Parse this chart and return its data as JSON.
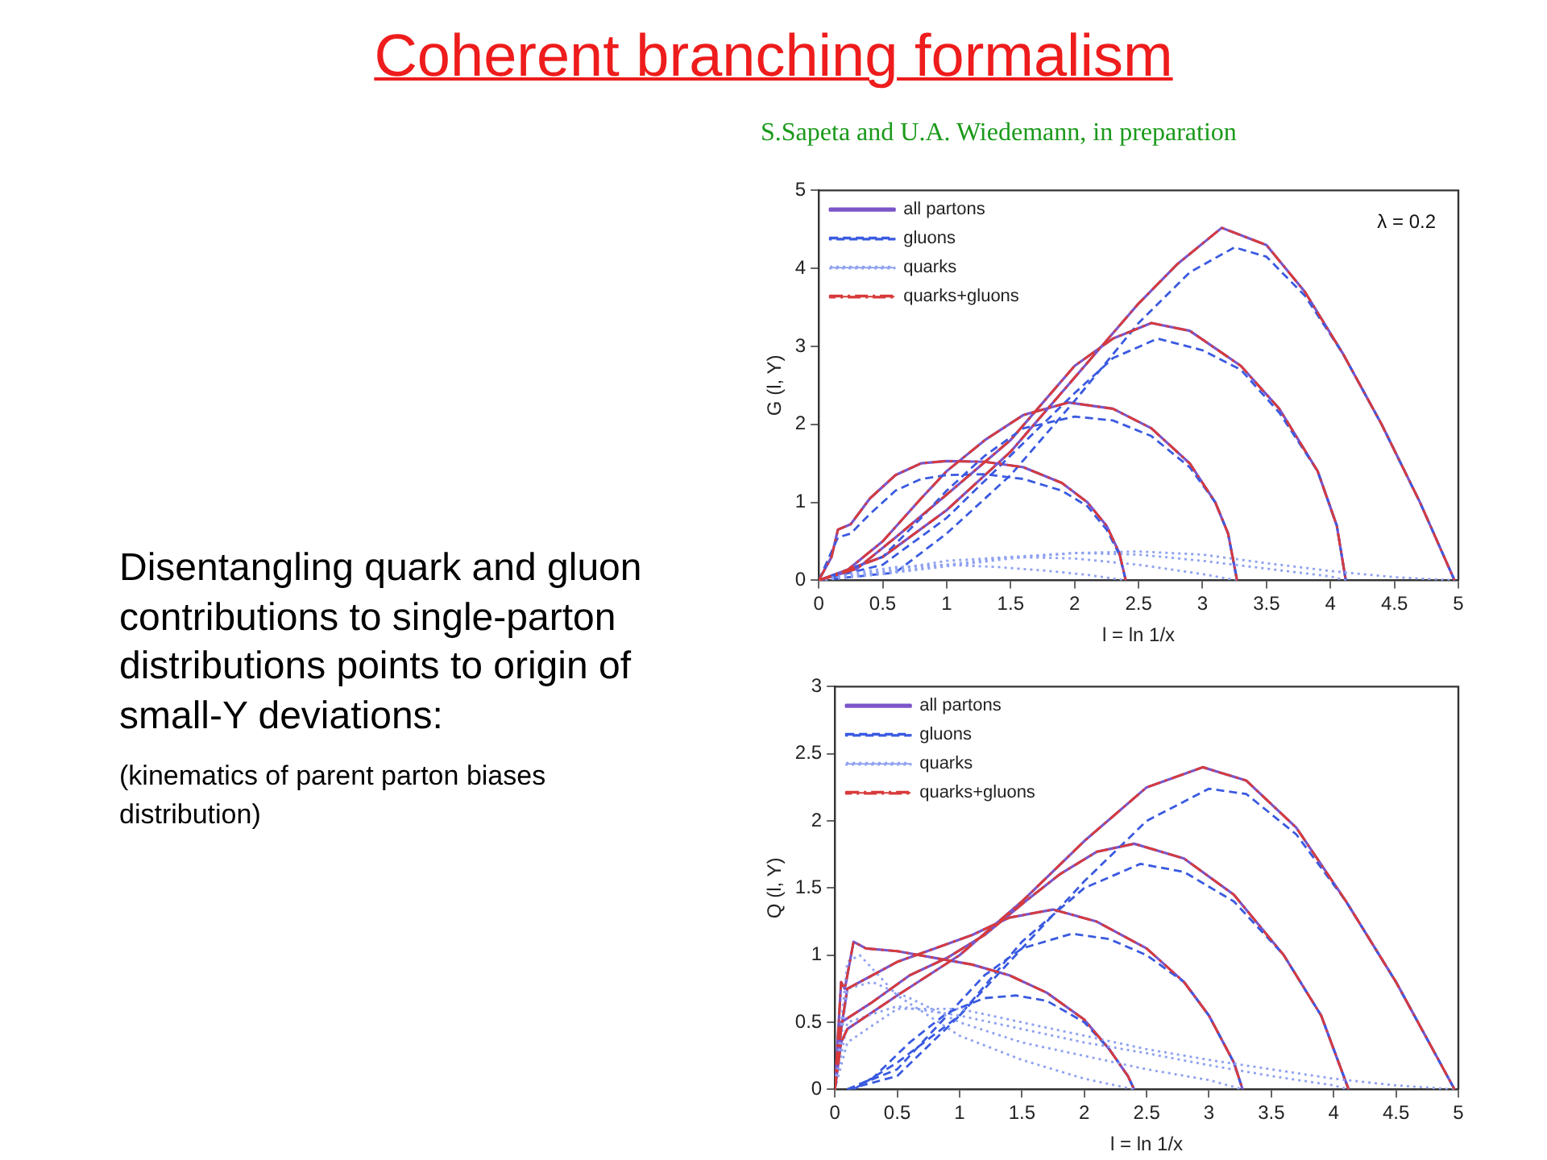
{
  "chart_data": [
    {
      "type": "line",
      "title": "Coherent branching formalism",
      "subtitle": "S.Sapeta and U.A. Wiedemann, in preparation",
      "xlabel": "l = ln 1/x",
      "ylabel": "G (l, Y)",
      "annotations": [
        "λ = 0.2"
      ],
      "xlim": [
        0,
        5
      ],
      "ylim": [
        0,
        5
      ],
      "xticks": [
        0,
        0.5,
        1,
        1.5,
        2,
        2.5,
        3,
        3.5,
        4,
        4.5,
        5
      ],
      "yticks": [
        0,
        1,
        2,
        3,
        4,
        5
      ],
      "grid": false,
      "legend": "top left",
      "marker": "none",
      "series": [
        {
          "name": "all partons",
          "color": "#7b55c8",
          "line_style": "solid",
          "x": [
            0,
            0.1,
            0.15,
            0.25,
            0.4,
            0.6,
            0.8,
            1.0,
            1.3,
            1.6,
            1.9,
            2.1,
            2.25,
            2.35,
            2.4
          ],
          "values": [
            0,
            0.3,
            0.65,
            0.72,
            1.05,
            1.35,
            1.5,
            1.53,
            1.52,
            1.45,
            1.25,
            1.0,
            0.7,
            0.35,
            0
          ]
        },
        {
          "color": "#7b55c8",
          "line_style": "solid",
          "x": [
            0,
            0.2,
            0.5,
            0.8,
            1.0,
            1.3,
            1.6,
            1.95,
            2.3,
            2.6,
            2.9,
            3.1,
            3.2,
            3.27
          ],
          "values": [
            0,
            0.1,
            0.5,
            1.05,
            1.4,
            1.8,
            2.12,
            2.28,
            2.2,
            1.95,
            1.5,
            1.0,
            0.6,
            0
          ]
        },
        {
          "color": "#7b55c8",
          "line_style": "solid",
          "x": [
            0,
            0.3,
            0.6,
            1.0,
            1.5,
            2.0,
            2.3,
            2.6,
            2.9,
            3.3,
            3.6,
            3.9,
            4.05,
            4.12
          ],
          "values": [
            0,
            0.15,
            0.55,
            1.1,
            1.8,
            2.75,
            3.1,
            3.3,
            3.2,
            2.75,
            2.2,
            1.4,
            0.7,
            0
          ]
        },
        {
          "color": "#7b55c8",
          "line_style": "solid",
          "x": [
            0,
            0.5,
            1.0,
            1.5,
            2.0,
            2.5,
            2.8,
            3.15,
            3.5,
            3.8,
            4.1,
            4.4,
            4.7,
            4.97
          ],
          "values": [
            0,
            0.3,
            0.9,
            1.65,
            2.6,
            3.55,
            4.05,
            4.52,
            4.3,
            3.7,
            2.9,
            2.0,
            1.0,
            0
          ]
        },
        {
          "name": "gluons",
          "color": "#3a5ae0",
          "line_style": "dashed",
          "x": [
            0,
            0.15,
            0.25,
            0.4,
            0.6,
            0.8,
            1.0,
            1.3,
            1.6,
            1.9,
            2.1,
            2.25,
            2.35,
            2.4
          ],
          "values": [
            0,
            0.55,
            0.6,
            0.85,
            1.15,
            1.3,
            1.35,
            1.36,
            1.3,
            1.15,
            0.95,
            0.65,
            0.33,
            0
          ]
        },
        {
          "color": "#3a5ae0",
          "line_style": "dashed",
          "x": [
            0,
            0.5,
            0.8,
            1.0,
            1.3,
            1.6,
            2.0,
            2.3,
            2.6,
            2.9,
            3.1,
            3.2,
            3.27
          ],
          "values": [
            0,
            0.3,
            0.8,
            1.15,
            1.6,
            1.95,
            2.1,
            2.05,
            1.85,
            1.45,
            1.0,
            0.6,
            0
          ]
        },
        {
          "color": "#3a5ae0",
          "line_style": "dashed",
          "x": [
            0,
            0.5,
            1.0,
            1.5,
            2.0,
            2.3,
            2.65,
            3.0,
            3.3,
            3.6,
            3.9,
            4.05,
            4.12
          ],
          "values": [
            0,
            0.2,
            0.8,
            1.6,
            2.4,
            2.85,
            3.1,
            2.95,
            2.7,
            2.15,
            1.4,
            0.7,
            0
          ]
        },
        {
          "color": "#3a5ae0",
          "line_style": "dashed",
          "x": [
            0,
            0.6,
            1.0,
            1.5,
            2.0,
            2.5,
            2.9,
            3.25,
            3.5,
            3.8,
            4.1,
            4.4,
            4.7,
            4.97
          ],
          "values": [
            0,
            0.1,
            0.6,
            1.35,
            2.3,
            3.3,
            3.95,
            4.27,
            4.15,
            3.65,
            2.9,
            2.0,
            1.0,
            0
          ]
        },
        {
          "name": "quarks",
          "color": "#8fa2f0",
          "line_style": "dotted",
          "x": [
            0,
            0.3,
            0.6,
            1.0,
            1.4,
            1.8,
            2.1,
            2.4
          ],
          "values": [
            0,
            0.1,
            0.17,
            0.2,
            0.17,
            0.12,
            0.07,
            0
          ]
        },
        {
          "color": "#8fa2f0",
          "line_style": "dotted",
          "x": [
            0,
            0.5,
            1.0,
            1.5,
            2.0,
            2.5,
            3.0,
            3.27
          ],
          "values": [
            0,
            0.12,
            0.25,
            0.3,
            0.28,
            0.2,
            0.08,
            0
          ]
        },
        {
          "color": "#8fa2f0",
          "line_style": "dotted",
          "x": [
            0,
            0.5,
            1.0,
            1.5,
            2.0,
            2.5,
            3.0,
            3.5,
            4.0,
            4.12
          ],
          "values": [
            0,
            0.1,
            0.2,
            0.3,
            0.35,
            0.33,
            0.25,
            0.15,
            0.05,
            0
          ]
        },
        {
          "color": "#8fa2f0",
          "line_style": "dotted",
          "x": [
            0,
            0.5,
            1.0,
            1.5,
            2.0,
            2.5,
            3.0,
            3.5,
            4.0,
            4.5,
            4.97
          ],
          "values": [
            0,
            0.08,
            0.18,
            0.28,
            0.35,
            0.37,
            0.33,
            0.22,
            0.12,
            0.04,
            0
          ]
        },
        {
          "name": "quarks+gluons",
          "color": "#d83a3a",
          "line_style": "dashdot",
          "x": [
            0,
            0.1,
            0.15,
            0.25,
            0.4,
            0.6,
            0.8,
            1.0,
            1.3,
            1.6,
            1.9,
            2.1,
            2.25,
            2.35,
            2.4
          ],
          "values": [
            0,
            0.3,
            0.65,
            0.72,
            1.05,
            1.35,
            1.5,
            1.53,
            1.52,
            1.45,
            1.25,
            1.0,
            0.7,
            0.35,
            0
          ]
        },
        {
          "color": "#d83a3a",
          "line_style": "dashdot",
          "x": [
            0,
            0.2,
            0.5,
            0.8,
            1.0,
            1.3,
            1.6,
            1.95,
            2.3,
            2.6,
            2.9,
            3.1,
            3.2,
            3.27
          ],
          "values": [
            0,
            0.1,
            0.5,
            1.05,
            1.4,
            1.8,
            2.12,
            2.28,
            2.2,
            1.95,
            1.5,
            1.0,
            0.6,
            0
          ]
        },
        {
          "color": "#d83a3a",
          "line_style": "dashdot",
          "x": [
            0,
            0.3,
            0.6,
            1.0,
            1.5,
            2.0,
            2.3,
            2.6,
            2.9,
            3.3,
            3.6,
            3.9,
            4.05,
            4.12
          ],
          "values": [
            0,
            0.15,
            0.55,
            1.1,
            1.8,
            2.75,
            3.1,
            3.3,
            3.2,
            2.75,
            2.2,
            1.4,
            0.7,
            0
          ]
        },
        {
          "color": "#d83a3a",
          "line_style": "dashdot",
          "x": [
            0,
            0.5,
            1.0,
            1.5,
            2.0,
            2.5,
            2.8,
            3.15,
            3.5,
            3.8,
            4.1,
            4.4,
            4.7,
            4.97
          ],
          "values": [
            0,
            0.3,
            0.9,
            1.65,
            2.6,
            3.55,
            4.05,
            4.52,
            4.3,
            3.7,
            2.9,
            2.0,
            1.0,
            0
          ]
        }
      ]
    },
    {
      "type": "line",
      "xlabel": "l = ln 1/x",
      "ylabel": "Q (l, Y)",
      "xlim": [
        0,
        5
      ],
      "ylim": [
        0,
        3
      ],
      "xticks": [
        0,
        0.5,
        1,
        1.5,
        2,
        2.5,
        3,
        3.5,
        4,
        4.5,
        5
      ],
      "yticks": [
        0,
        0.5,
        1,
        1.5,
        2,
        2.5,
        3
      ],
      "grid": false,
      "legend": "top left",
      "marker": "none",
      "series": [
        {
          "name": "all partons",
          "color": "#7b55c8",
          "line_style": "solid",
          "x": [
            0,
            0.05,
            0.08,
            0.15,
            0.25,
            0.5,
            0.8,
            1.1,
            1.4,
            1.7,
            2.0,
            2.2,
            2.35,
            2.4
          ],
          "values": [
            0,
            0.8,
            0.75,
            1.1,
            1.05,
            1.03,
            0.98,
            0.93,
            0.85,
            0.72,
            0.52,
            0.3,
            0.1,
            0
          ]
        },
        {
          "color": "#7b55c8",
          "line_style": "solid",
          "x": [
            0,
            0.05,
            0.1,
            0.3,
            0.5,
            0.8,
            1.1,
            1.4,
            1.75,
            2.1,
            2.5,
            2.8,
            3.0,
            3.2,
            3.27
          ],
          "values": [
            0,
            0.45,
            0.75,
            0.85,
            0.95,
            1.05,
            1.15,
            1.28,
            1.34,
            1.25,
            1.05,
            0.8,
            0.55,
            0.2,
            0
          ]
        },
        {
          "color": "#7b55c8",
          "line_style": "solid",
          "x": [
            0,
            0.05,
            0.3,
            0.6,
            0.9,
            1.2,
            1.5,
            1.8,
            2.1,
            2.4,
            2.8,
            3.2,
            3.6,
            3.9,
            4.12
          ],
          "values": [
            0,
            0.5,
            0.65,
            0.85,
            0.98,
            1.15,
            1.38,
            1.6,
            1.77,
            1.83,
            1.72,
            1.45,
            1.0,
            0.55,
            0
          ]
        },
        {
          "color": "#7b55c8",
          "line_style": "solid",
          "x": [
            0,
            0.05,
            0.1,
            0.5,
            1.0,
            1.5,
            2.0,
            2.5,
            2.95,
            3.3,
            3.7,
            4.1,
            4.5,
            4.97
          ],
          "values": [
            0,
            0.35,
            0.45,
            0.7,
            1.0,
            1.4,
            1.85,
            2.25,
            2.4,
            2.3,
            1.95,
            1.4,
            0.8,
            0
          ]
        },
        {
          "name": "gluons",
          "color": "#3a5ae0",
          "line_style": "dashed",
          "x": [
            0.1,
            0.3,
            0.6,
            0.9,
            1.2,
            1.45,
            1.7,
            2.0,
            2.2,
            2.35,
            2.4
          ],
          "values": [
            0,
            0.08,
            0.35,
            0.57,
            0.68,
            0.7,
            0.66,
            0.5,
            0.3,
            0.1,
            0
          ]
        },
        {
          "color": "#3a5ae0",
          "line_style": "dashed",
          "x": [
            0.1,
            0.5,
            0.9,
            1.2,
            1.5,
            1.9,
            2.2,
            2.5,
            2.8,
            3.0,
            3.2,
            3.27
          ],
          "values": [
            0,
            0.15,
            0.55,
            0.85,
            1.05,
            1.16,
            1.12,
            1.0,
            0.8,
            0.55,
            0.2,
            0
          ]
        },
        {
          "color": "#3a5ae0",
          "line_style": "dashed",
          "x": [
            0.1,
            0.5,
            1.0,
            1.5,
            2.0,
            2.45,
            2.8,
            3.2,
            3.6,
            3.9,
            4.12
          ],
          "values": [
            0,
            0.1,
            0.55,
            1.1,
            1.5,
            1.68,
            1.62,
            1.4,
            1.0,
            0.55,
            0
          ]
        },
        {
          "color": "#3a5ae0",
          "line_style": "dashed",
          "x": [
            0.15,
            0.5,
            1.0,
            1.5,
            2.0,
            2.5,
            3.0,
            3.3,
            3.7,
            4.1,
            4.5,
            4.97
          ],
          "values": [
            0,
            0.2,
            0.55,
            1.05,
            1.55,
            2.0,
            2.24,
            2.2,
            1.9,
            1.4,
            0.8,
            0
          ]
        },
        {
          "name": "quarks",
          "color": "#8fa2f0",
          "line_style": "dotted",
          "x": [
            0,
            0.1,
            0.2,
            0.5,
            1.0,
            1.5,
            2.0,
            2.4
          ],
          "values": [
            0,
            0.95,
            1.0,
            0.7,
            0.4,
            0.22,
            0.08,
            0
          ]
        },
        {
          "color": "#8fa2f0",
          "line_style": "dotted",
          "x": [
            0,
            0.1,
            0.3,
            0.6,
            1.0,
            1.5,
            2.0,
            2.5,
            3.0,
            3.27
          ],
          "values": [
            0,
            0.75,
            0.8,
            0.68,
            0.5,
            0.35,
            0.25,
            0.15,
            0.07,
            0
          ]
        },
        {
          "color": "#8fa2f0",
          "line_style": "dotted",
          "x": [
            0,
            0.1,
            0.5,
            1.0,
            1.5,
            2.0,
            2.5,
            3.0,
            3.5,
            4.0,
            4.12
          ],
          "values": [
            0,
            0.5,
            0.62,
            0.55,
            0.45,
            0.35,
            0.27,
            0.18,
            0.1,
            0.03,
            0
          ]
        },
        {
          "color": "#8fa2f0",
          "line_style": "dotted",
          "x": [
            0,
            0.1,
            0.5,
            1.0,
            1.5,
            2.0,
            2.5,
            3.0,
            3.5,
            4.0,
            4.5,
            4.97
          ],
          "values": [
            0,
            0.35,
            0.6,
            0.6,
            0.5,
            0.4,
            0.3,
            0.22,
            0.15,
            0.08,
            0.03,
            0
          ]
        },
        {
          "name": "quarks+gluons",
          "color": "#d83a3a",
          "line_style": "dashdot",
          "x": [
            0,
            0.05,
            0.08,
            0.15,
            0.25,
            0.5,
            0.8,
            1.1,
            1.4,
            1.7,
            2.0,
            2.2,
            2.35,
            2.4
          ],
          "values": [
            0,
            0.8,
            0.75,
            1.1,
            1.05,
            1.03,
            0.98,
            0.93,
            0.85,
            0.72,
            0.52,
            0.3,
            0.1,
            0
          ]
        },
        {
          "color": "#d83a3a",
          "line_style": "dashdot",
          "x": [
            0,
            0.05,
            0.1,
            0.3,
            0.5,
            0.8,
            1.1,
            1.4,
            1.75,
            2.1,
            2.5,
            2.8,
            3.0,
            3.2,
            3.27
          ],
          "values": [
            0,
            0.45,
            0.75,
            0.85,
            0.95,
            1.05,
            1.15,
            1.28,
            1.34,
            1.25,
            1.05,
            0.8,
            0.55,
            0.2,
            0
          ]
        },
        {
          "color": "#d83a3a",
          "line_style": "dashdot",
          "x": [
            0,
            0.05,
            0.3,
            0.6,
            0.9,
            1.2,
            1.5,
            1.8,
            2.1,
            2.4,
            2.8,
            3.2,
            3.6,
            3.9,
            4.12
          ],
          "values": [
            0,
            0.5,
            0.65,
            0.85,
            0.98,
            1.15,
            1.38,
            1.6,
            1.77,
            1.83,
            1.72,
            1.45,
            1.0,
            0.55,
            0
          ]
        },
        {
          "color": "#d83a3a",
          "line_style": "dashdot",
          "x": [
            0,
            0.05,
            0.1,
            0.5,
            1.0,
            1.5,
            2.0,
            2.5,
            2.95,
            3.3,
            3.7,
            4.1,
            4.5,
            4.97
          ],
          "values": [
            0,
            0.35,
            0.45,
            0.7,
            1.0,
            1.4,
            1.85,
            2.25,
            2.4,
            2.3,
            1.95,
            1.4,
            0.8,
            0
          ]
        }
      ]
    },
    {
      "type": "other",
      "annotations": [
        "Disentangling quark and gluon contributions to single-parton distributions  points to origin of small-Y deviations:",
        "(kinematics of parent parton biases distribution)"
      ]
    }
  ]
}
